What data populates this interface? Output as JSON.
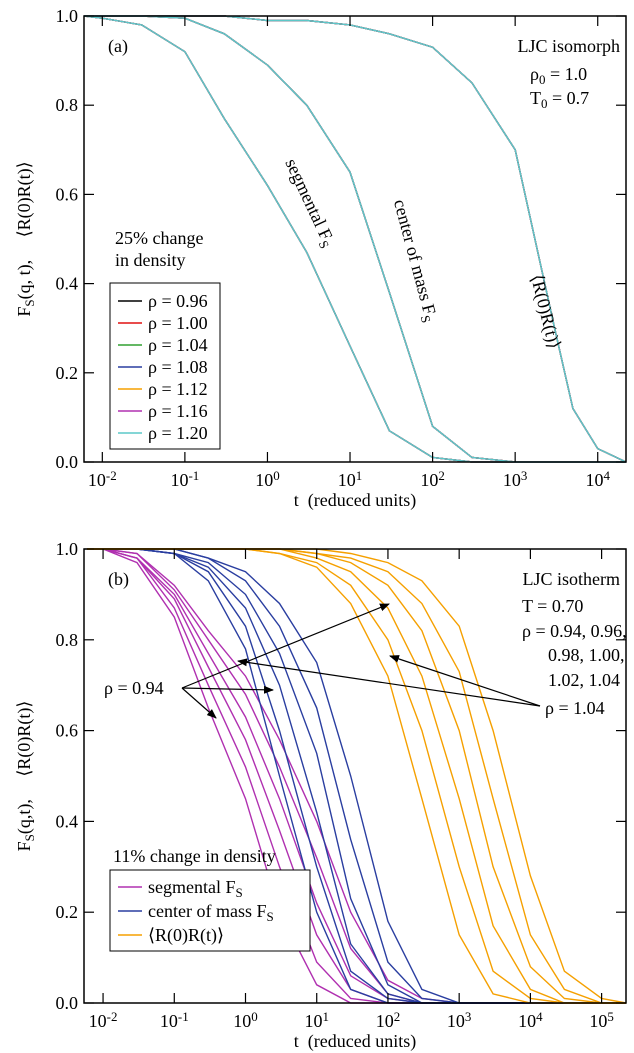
{
  "chart_data": [
    {
      "type": "line",
      "xlog": true,
      "xlabel": "t  (reduced units)",
      "ylabel": [
        "F",
        {
          "sub": "S"
        },
        "(q, t),     ⟨R(0)R(t)⟩"
      ],
      "xlim": [
        0.006,
        22000
      ],
      "ylim": [
        0,
        1
      ],
      "xticks": [
        {
          "value": 0.01,
          "label": [
            "10",
            {
              "sup": "-2"
            }
          ]
        },
        {
          "value": 0.1,
          "label": [
            "10",
            {
              "sup": "-1"
            }
          ]
        },
        {
          "value": 1,
          "label": [
            "10",
            {
              "sup": "0"
            }
          ]
        },
        {
          "value": 10,
          "label": [
            "10",
            {
              "sup": "1"
            }
          ]
        },
        {
          "value": 100,
          "label": [
            "10",
            {
              "sup": "2"
            }
          ]
        },
        {
          "value": 1000,
          "label": [
            "10",
            {
              "sup": "3"
            }
          ]
        },
        {
          "value": 10000,
          "label": [
            "10",
            {
              "sup": "4"
            }
          ]
        }
      ],
      "yticks": [
        {
          "value": 0,
          "label": "0.0"
        },
        0.2,
        0.4,
        0.6,
        0.8,
        {
          "value": 1,
          "label": "1.0"
        }
      ],
      "annotations": [
        "(a)",
        "LJC isomorph",
        [
          "ρ",
          {
            "sub": "0"
          },
          " = 1.0"
        ],
        [
          "T",
          {
            "sub": "0"
          },
          " = 0.7"
        ],
        "25% change",
        "in density",
        [
          "segmental F",
          {
            "sub": "S"
          }
        ],
        [
          "center of mass F",
          {
            "sub": "S"
          }
        ],
        "⟨R(0)R(t)⟩"
      ],
      "x": [
        0.006,
        0.01,
        0.03,
        0.1,
        0.3,
        1,
        3,
        10,
        30,
        100,
        300,
        1000,
        3000,
        5000,
        10000,
        22000
      ],
      "series": [
        {
          "name": "ρ = 0.96",
          "color": "#000000",
          "curves": [
            [
              1,
              0.995,
              0.98,
              0.92,
              0.77,
              0.62,
              0.47,
              0.26,
              0.07,
              0.01,
              0,
              0,
              0,
              0,
              0,
              0
            ],
            [
              1,
              1,
              1,
              0.995,
              0.96,
              0.89,
              0.8,
              0.65,
              0.38,
              0.08,
              0.01,
              0,
              0,
              0,
              0,
              0
            ],
            [
              1,
              1,
              1,
              1,
              1,
              0.99,
              0.99,
              0.98,
              0.96,
              0.93,
              0.85,
              0.7,
              0.3,
              0.12,
              0.03,
              0
            ]
          ]
        },
        {
          "name": "ρ = 1.00",
          "color": "#e01010",
          "curves": [
            [
              1,
              0.995,
              0.98,
              0.92,
              0.77,
              0.62,
              0.47,
              0.26,
              0.07,
              0.01,
              0,
              0,
              0,
              0,
              0,
              0
            ],
            [
              1,
              1,
              1,
              0.995,
              0.96,
              0.89,
              0.8,
              0.65,
              0.38,
              0.08,
              0.01,
              0,
              0,
              0,
              0,
              0
            ],
            [
              1,
              1,
              1,
              1,
              1,
              0.99,
              0.99,
              0.98,
              0.96,
              0.93,
              0.85,
              0.7,
              0.3,
              0.12,
              0.03,
              0
            ]
          ]
        },
        {
          "name": "ρ = 1.04",
          "color": "#30a030",
          "curves": [
            [
              1,
              0.995,
              0.98,
              0.92,
              0.77,
              0.62,
              0.47,
              0.26,
              0.07,
              0.01,
              0,
              0,
              0,
              0,
              0,
              0
            ],
            [
              1,
              1,
              1,
              0.995,
              0.96,
              0.89,
              0.8,
              0.65,
              0.38,
              0.08,
              0.01,
              0,
              0,
              0,
              0,
              0
            ],
            [
              1,
              1,
              1,
              1,
              1,
              0.99,
              0.99,
              0.98,
              0.96,
              0.93,
              0.85,
              0.7,
              0.3,
              0.12,
              0.03,
              0
            ]
          ]
        },
        {
          "name": "ρ = 1.08",
          "color": "#2a3ea0",
          "curves": [
            [
              1,
              0.995,
              0.98,
              0.92,
              0.77,
              0.62,
              0.47,
              0.26,
              0.07,
              0.01,
              0,
              0,
              0,
              0,
              0,
              0
            ],
            [
              1,
              1,
              1,
              0.995,
              0.96,
              0.89,
              0.8,
              0.65,
              0.38,
              0.08,
              0.01,
              0,
              0,
              0,
              0,
              0
            ],
            [
              1,
              1,
              1,
              1,
              1,
              0.99,
              0.99,
              0.98,
              0.96,
              0.93,
              0.85,
              0.7,
              0.3,
              0.12,
              0.03,
              0
            ]
          ]
        },
        {
          "name": "ρ = 1.12",
          "color": "#f5a000",
          "curves": [
            [
              1,
              0.995,
              0.98,
              0.92,
              0.77,
              0.62,
              0.47,
              0.26,
              0.07,
              0.01,
              0,
              0,
              0,
              0,
              0,
              0
            ],
            [
              1,
              1,
              1,
              0.995,
              0.96,
              0.89,
              0.8,
              0.65,
              0.38,
              0.08,
              0.01,
              0,
              0,
              0,
              0,
              0
            ],
            [
              1,
              1,
              1,
              1,
              1,
              0.99,
              0.99,
              0.98,
              0.96,
              0.93,
              0.85,
              0.7,
              0.3,
              0.12,
              0.03,
              0
            ]
          ]
        },
        {
          "name": "ρ = 1.16",
          "color": "#b030b0",
          "curves": [
            [
              1,
              0.995,
              0.98,
              0.92,
              0.77,
              0.62,
              0.47,
              0.26,
              0.07,
              0.01,
              0,
              0,
              0,
              0,
              0,
              0
            ],
            [
              1,
              1,
              1,
              0.995,
              0.96,
              0.89,
              0.8,
              0.65,
              0.38,
              0.08,
              0.01,
              0,
              0,
              0,
              0,
              0
            ],
            [
              1,
              1,
              1,
              1,
              1,
              0.99,
              0.99,
              0.98,
              0.96,
              0.93,
              0.85,
              0.7,
              0.3,
              0.12,
              0.03,
              0
            ]
          ]
        },
        {
          "name": "ρ = 1.20",
          "color": "#5bc8c8",
          "curves": [
            [
              1,
              0.995,
              0.98,
              0.92,
              0.77,
              0.62,
              0.47,
              0.26,
              0.07,
              0.01,
              0,
              0,
              0,
              0,
              0,
              0
            ],
            [
              1,
              1,
              1,
              0.995,
              0.96,
              0.89,
              0.8,
              0.65,
              0.38,
              0.08,
              0.01,
              0,
              0,
              0,
              0,
              0
            ],
            [
              1,
              1,
              1,
              1,
              1,
              0.99,
              0.99,
              0.98,
              0.96,
              0.93,
              0.85,
              0.7,
              0.3,
              0.12,
              0.03,
              0
            ]
          ]
        }
      ]
    },
    {
      "type": "line",
      "xlog": true,
      "xlabel": "t  (reduced units)",
      "ylabel": [
        "F",
        {
          "sub": "S"
        },
        "(q,t),     ⟨R(0)R(t)⟩"
      ],
      "xlim": [
        0.0054,
        220000
      ],
      "ylim": [
        0,
        1
      ],
      "xticks": [
        {
          "value": 0.01,
          "label": [
            "10",
            {
              "sup": "-2"
            }
          ]
        },
        {
          "value": 0.1,
          "label": [
            "10",
            {
              "sup": "-1"
            }
          ]
        },
        {
          "value": 1,
          "label": [
            "10",
            {
              "sup": "0"
            }
          ]
        },
        {
          "value": 10,
          "label": [
            "10",
            {
              "sup": "1"
            }
          ]
        },
        {
          "value": 100,
          "label": [
            "10",
            {
              "sup": "2"
            }
          ]
        },
        {
          "value": 1000,
          "label": [
            "10",
            {
              "sup": "3"
            }
          ]
        },
        {
          "value": 10000,
          "label": [
            "10",
            {
              "sup": "4"
            }
          ]
        },
        {
          "value": 100000,
          "label": [
            "10",
            {
              "sup": "5"
            }
          ]
        }
      ],
      "yticks": [
        {
          "value": 0,
          "label": "0.0"
        },
        0.2,
        0.4,
        0.6,
        0.8,
        {
          "value": 1,
          "label": "1.0"
        }
      ],
      "annotations": [
        "(b)",
        "LJC isotherm",
        "T = 0.70",
        "ρ = 0.94, 0.96,",
        "0.98, 1.00,",
        "1.02, 1.04",
        "ρ = 0.94",
        "ρ = 1.04",
        "11% change in density"
      ],
      "x": [
        0.006,
        0.01,
        0.03,
        0.1,
        0.3,
        1,
        3,
        10,
        30,
        100,
        300,
        1000,
        3000,
        10000,
        30000,
        100000,
        220000
      ],
      "series": [
        {
          "name": [
            "segmental F",
            {
              "sub": "S"
            }
          ],
          "color": "#b030b0",
          "curves": [
            [
              1,
              1,
              0.97,
              0.85,
              0.65,
              0.45,
              0.2,
              0.04,
              0,
              0,
              0,
              0,
              0,
              0,
              0,
              0,
              0
            ],
            [
              1,
              1,
              0.98,
              0.87,
              0.7,
              0.52,
              0.3,
              0.09,
              0.01,
              0,
              0,
              0,
              0,
              0,
              0,
              0,
              0
            ],
            [
              1,
              1,
              0.98,
              0.89,
              0.74,
              0.58,
              0.38,
              0.15,
              0.03,
              0,
              0,
              0,
              0,
              0,
              0,
              0,
              0
            ],
            [
              1,
              1,
              0.98,
              0.9,
              0.77,
              0.63,
              0.45,
              0.22,
              0.06,
              0.01,
              0,
              0,
              0,
              0,
              0,
              0,
              0
            ],
            [
              1,
              1,
              0.99,
              0.91,
              0.8,
              0.68,
              0.52,
              0.32,
              0.12,
              0.02,
              0,
              0,
              0,
              0,
              0,
              0,
              0
            ],
            [
              1,
              1,
              0.99,
              0.92,
              0.82,
              0.72,
              0.58,
              0.4,
              0.2,
              0.05,
              0.01,
              0,
              0,
              0,
              0,
              0,
              0
            ]
          ]
        },
        {
          "name": [
            "center of mass F",
            {
              "sub": "S"
            }
          ],
          "color": "#2a3ea0",
          "curves": [
            [
              1,
              1,
              1,
              0.99,
              0.93,
              0.78,
              0.5,
              0.2,
              0.03,
              0,
              0,
              0,
              0,
              0,
              0,
              0,
              0
            ],
            [
              1,
              1,
              1,
              0.99,
              0.95,
              0.83,
              0.6,
              0.3,
              0.07,
              0.01,
              0,
              0,
              0,
              0,
              0,
              0,
              0
            ],
            [
              1,
              1,
              1,
              0.99,
              0.96,
              0.87,
              0.7,
              0.42,
              0.13,
              0.02,
              0,
              0,
              0,
              0,
              0,
              0,
              0
            ],
            [
              1,
              1,
              1,
              0.99,
              0.97,
              0.9,
              0.77,
              0.55,
              0.23,
              0.04,
              0,
              0,
              0,
              0,
              0,
              0,
              0
            ],
            [
              1,
              1,
              1,
              1,
              0.98,
              0.93,
              0.83,
              0.65,
              0.36,
              0.09,
              0.01,
              0,
              0,
              0,
              0,
              0,
              0
            ],
            [
              1,
              1,
              1,
              1,
              0.98,
              0.95,
              0.88,
              0.75,
              0.5,
              0.18,
              0.03,
              0,
              0,
              0,
              0,
              0,
              0
            ]
          ]
        },
        {
          "name": "⟨R(0)R(t)⟩",
          "color": "#f5a000",
          "curves": [
            [
              1,
              1,
              1,
              1,
              1,
              1,
              0.99,
              0.96,
              0.88,
              0.72,
              0.45,
              0.15,
              0.02,
              0,
              0,
              0,
              0
            ],
            [
              1,
              1,
              1,
              1,
              1,
              1,
              0.99,
              0.97,
              0.92,
              0.8,
              0.6,
              0.3,
              0.07,
              0.01,
              0,
              0,
              0
            ],
            [
              1,
              1,
              1,
              1,
              1,
              1,
              1,
              0.98,
              0.95,
              0.87,
              0.72,
              0.45,
              0.17,
              0.03,
              0,
              0,
              0
            ],
            [
              1,
              1,
              1,
              1,
              1,
              1,
              1,
              0.99,
              0.97,
              0.92,
              0.82,
              0.6,
              0.3,
              0.08,
              0.01,
              0,
              0
            ],
            [
              1,
              1,
              1,
              1,
              1,
              1,
              1,
              0.99,
              0.98,
              0.95,
              0.88,
              0.73,
              0.45,
              0.15,
              0.03,
              0,
              0
            ],
            [
              1,
              1,
              1,
              1,
              1,
              1,
              1,
              1,
              0.99,
              0.97,
              0.93,
              0.83,
              0.6,
              0.28,
              0.07,
              0.01,
              0
            ]
          ]
        }
      ]
    }
  ]
}
